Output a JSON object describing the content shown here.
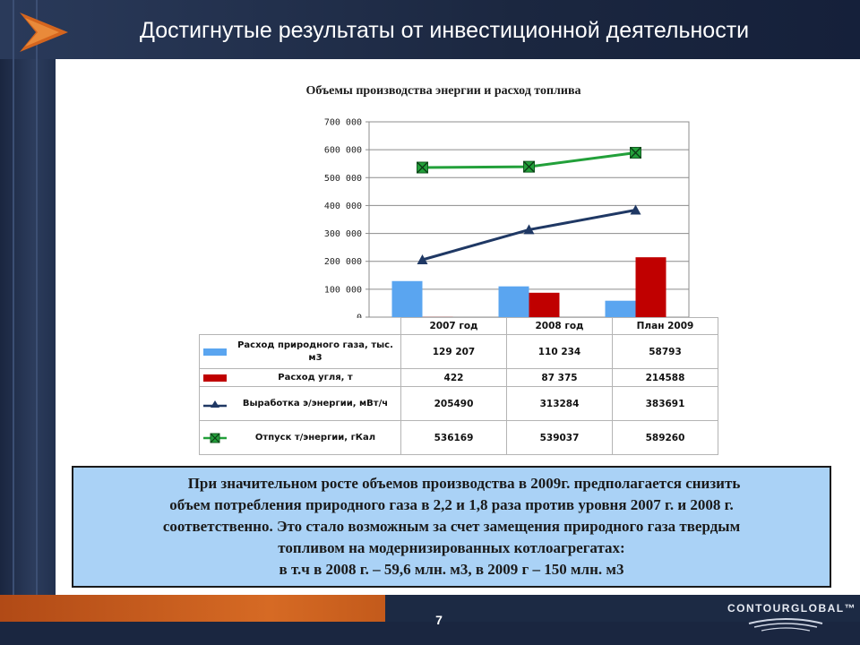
{
  "header": {
    "title": "Достигнутые результаты от инвестиционной деятельности"
  },
  "chart_data": {
    "type": "bar",
    "title": "Объемы производства энергии и расход топлива",
    "categories": [
      "2007 год",
      "2008 год",
      "План 2009"
    ],
    "ylim": [
      0,
      700000
    ],
    "yticks": [
      "0",
      "100 000",
      "200 000",
      "300 000",
      "400 000",
      "500 000",
      "600 000",
      "700 000"
    ],
    "grid": true,
    "legend_placement": "table-left",
    "series": [
      {
        "name": "Расход природного газа, тыс. м3",
        "kind": "bar",
        "color": "#5aa5f0",
        "values": [
          129207,
          110234,
          58793
        ],
        "labels": [
          "129 207",
          "110 234",
          "58793"
        ]
      },
      {
        "name": "Расход угля, т",
        "kind": "bar",
        "color": "#c00000",
        "values": [
          422,
          87375,
          214588
        ],
        "labels": [
          "422",
          "87 375",
          "214588"
        ]
      },
      {
        "name": "Выработка э/энергии, мВт/ч",
        "kind": "line",
        "marker": "triangle",
        "color": "#1f3864",
        "values": [
          205490,
          313284,
          383691
        ],
        "labels": [
          "205490",
          "313284",
          "383691"
        ]
      },
      {
        "name": "Отпуск т/энергии, гКал",
        "kind": "line",
        "marker": "x-square",
        "color": "#22a03a",
        "values": [
          536169,
          539037,
          589260
        ],
        "labels": [
          "536169",
          "539037",
          "589260"
        ]
      }
    ]
  },
  "textbox": {
    "line1": "При значительном росте объемов производства  в 2009г. предполагается снизить",
    "line2": "объем потребления природного газа в  2,2 и 1,8 раза против уровня 2007 г. и 2008 г.",
    "line3": "соответственно.  Это стало возможным за счет замещения  природного газа твердым",
    "line4": "топливом на модернизированных  котлоагрегатах:",
    "line5": "в т.ч в 2008 г. – 59,6 млн. м3, в 2009 г – 150 млн. м3"
  },
  "footer": {
    "page_number": "7",
    "brand": "CONTOURGLOBAL™"
  }
}
